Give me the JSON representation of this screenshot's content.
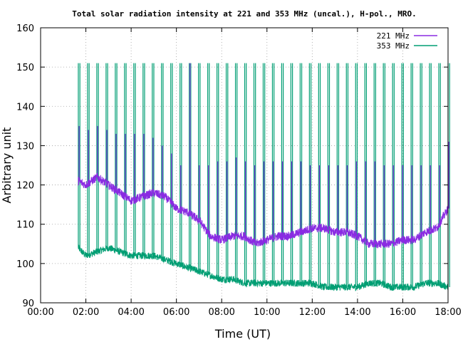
{
  "chart_data": {
    "type": "line",
    "title": "Total solar radiation intensity at 221 and 353 MHz (uncal.), H-pol., MRO.",
    "xlabel": "Time (UT)",
    "ylabel": "Arbitrary unit",
    "xlim": [
      "00:00",
      "18:00"
    ],
    "ylim": [
      90,
      160
    ],
    "x_ticks": [
      "00:00",
      "02:00",
      "04:00",
      "06:00",
      "08:00",
      "10:00",
      "12:00",
      "14:00",
      "16:00",
      "18:00"
    ],
    "y_ticks": [
      90,
      100,
      110,
      120,
      130,
      140,
      150,
      160
    ],
    "grid": true,
    "legend_position": "top-right",
    "series": [
      {
        "name": "221 MHz",
        "color": "#8a2be2",
        "baseline_x": [
          "01:40",
          "02:00",
          "02:30",
          "03:00",
          "03:30",
          "04:00",
          "04:30",
          "05:00",
          "05:30",
          "06:00",
          "06:30",
          "07:00",
          "07:30",
          "08:00",
          "08:30",
          "09:00",
          "09:30",
          "10:00",
          "10:30",
          "11:00",
          "11:30",
          "12:00",
          "12:30",
          "13:00",
          "13:30",
          "14:00",
          "14:30",
          "15:00",
          "15:30",
          "16:00",
          "16:30",
          "17:00",
          "17:30",
          "18:00"
        ],
        "baseline_y": [
          121,
          120,
          122,
          120,
          118,
          116,
          117,
          118,
          117,
          114,
          113,
          111,
          107,
          106,
          107,
          107,
          105,
          106,
          107,
          107,
          108,
          109,
          109,
          108,
          108,
          107,
          105,
          105,
          105,
          106,
          106,
          108,
          109,
          114
        ],
        "spike_peaks": [
          135,
          134,
          135,
          134,
          133,
          133,
          133,
          133,
          132,
          130,
          128,
          125,
          151,
          125,
          125,
          126,
          126,
          127,
          126,
          125,
          126,
          126,
          126,
          126,
          126,
          125,
          125,
          125,
          125,
          125,
          126,
          126,
          126,
          125,
          125,
          125,
          125,
          125,
          125,
          125,
          131
        ]
      },
      {
        "name": "353 MHz",
        "color": "#009e73",
        "baseline_x": [
          "01:40",
          "02:00",
          "02:30",
          "03:00",
          "03:30",
          "04:00",
          "04:30",
          "05:00",
          "05:30",
          "06:00",
          "06:30",
          "07:00",
          "07:30",
          "08:00",
          "08:30",
          "09:00",
          "09:30",
          "10:00",
          "10:30",
          "11:00",
          "11:30",
          "12:00",
          "12:30",
          "13:00",
          "13:30",
          "14:00",
          "14:30",
          "15:00",
          "15:30",
          "16:00",
          "16:30",
          "17:00",
          "17:30",
          "18:00"
        ],
        "baseline_y": [
          104,
          102,
          103,
          104,
          103,
          102,
          102,
          102,
          101,
          100,
          99,
          98,
          97,
          96,
          96,
          95,
          95,
          95,
          95,
          95,
          95,
          95,
          94,
          94,
          94,
          94,
          95,
          95,
          94,
          94,
          94,
          95,
          95,
          94
        ],
        "spike_peak": 151
      }
    ]
  }
}
